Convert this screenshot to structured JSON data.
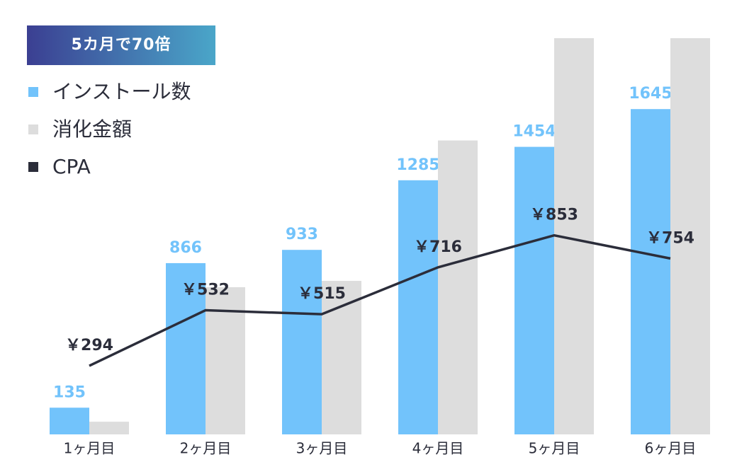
{
  "chart_data": {
    "type": "bar-line",
    "annotation": "5カ月で70倍",
    "categories": [
      "1ヶ月目",
      "2ヶ月目",
      "3ヶ月目",
      "4ヶ月目",
      "5ヶ月目",
      "6ヶ月目"
    ],
    "series": [
      {
        "name": "インストール数",
        "color": "#72c3fb",
        "type": "bar",
        "values": [
          135,
          866,
          933,
          1285,
          1454,
          1645
        ]
      },
      {
        "name": "消化金額",
        "color": "#dddddd",
        "type": "bar",
        "axis": "y2",
        "values": [
          39690,
          460712,
          480495,
          920060,
          1240262,
          1240330
        ]
      },
      {
        "name": "CPA",
        "color": "#2b2d3a",
        "type": "line",
        "axis": "y3",
        "values": [
          294,
          532,
          515,
          716,
          853,
          754
        ],
        "value_labels": [
          "￥294",
          "￥532",
          "￥515",
          "￥716",
          "￥853",
          "￥754"
        ]
      }
    ],
    "ylim": [
      0,
      2100
    ],
    "y2lim": [
      0,
      1300000
    ],
    "y3lim": [
      0,
      1780
    ]
  }
}
